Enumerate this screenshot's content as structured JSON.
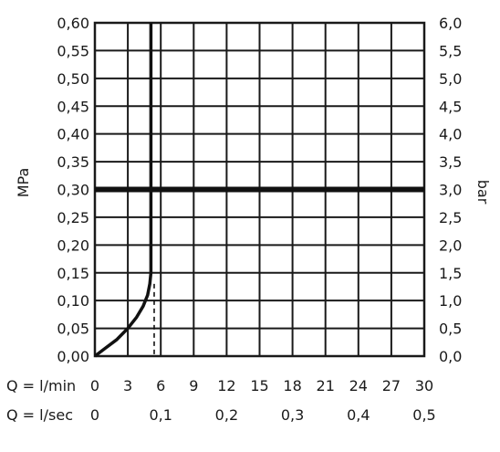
{
  "chart_data": {
    "type": "line",
    "title": "",
    "ylabel_left": "MPa",
    "ylabel_right": "bar",
    "x_row_labels": [
      "Q = l/min",
      "Q = l/sec"
    ],
    "x_lmin_ticks": [
      "0",
      "3",
      "6",
      "9",
      "12",
      "15",
      "18",
      "21",
      "24",
      "27",
      "30"
    ],
    "x_lsec_ticks": [
      "0",
      "0,1",
      "0,2",
      "0,3",
      "0,4",
      "0,5"
    ],
    "y_left_ticks": [
      "0,00",
      "0,05",
      "0,10",
      "0,15",
      "0,20",
      "0,25",
      "0,30",
      "0,35",
      "0,40",
      "0,45",
      "0,50",
      "0,55",
      "0,60"
    ],
    "y_right_ticks": [
      "0,0",
      "0,5",
      "1,0",
      "1,5",
      "2,0",
      "2,5",
      "3,0",
      "3,5",
      "4,0",
      "4,5",
      "5,0",
      "5,5",
      "6,0"
    ],
    "xlim": [
      0,
      30
    ],
    "ylim": [
      0,
      0.6
    ],
    "grid": true,
    "reference_line": {
      "y": 0.3
    },
    "dashed_marker": {
      "x": 5.4,
      "y_max": 0.13
    },
    "series": [
      {
        "x": [
          0,
          1,
          2,
          3,
          3.8,
          4.4,
          4.8,
          5.0,
          5.1,
          5.1,
          5.1
        ],
        "y": [
          0,
          0.015,
          0.03,
          0.05,
          0.07,
          0.09,
          0.11,
          0.13,
          0.15,
          0.3,
          0.6
        ]
      }
    ]
  }
}
